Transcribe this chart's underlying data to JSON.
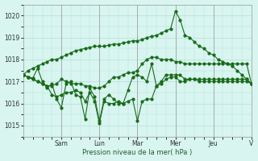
{
  "background_color": "#d8f5f0",
  "grid_color": "#b8ddd8",
  "line_color": "#1a6b1a",
  "xlabel": "Pression niveau de la mer( hPa )",
  "ylim": [
    1014.5,
    1020.5
  ],
  "yticks": [
    1015,
    1016,
    1017,
    1018,
    1019,
    1020
  ],
  "x_day_labels": [
    "Sam",
    "Lun",
    "Mar",
    "Mer",
    "Jeu",
    "V"
  ],
  "x_day_positions": [
    8,
    16,
    24,
    32,
    40,
    48
  ],
  "n_points": 49,
  "series": [
    [
      1017.3,
      1017.2,
      1017.1,
      1017.0,
      1016.9,
      1016.8,
      1016.4,
      1016.3,
      1016.4,
      1016.5,
      1016.5,
      1016.6,
      1016.5,
      1016.1,
      1016.5,
      1016.1,
      1015.1,
      1016.1,
      1016.0,
      1016.0,
      1016.1,
      1016.0,
      1016.1,
      1016.2,
      1015.2,
      1016.1,
      1016.2,
      1016.2,
      1016.8,
      1016.9,
      1017.1,
      1017.2,
      1017.2,
      1017.0,
      1017.0,
      1017.1,
      1017.1,
      1017.0,
      1017.0,
      1017.0,
      1017.0,
      1017.0,
      1017.0,
      1017.0,
      1017.0,
      1017.0,
      1017.0,
      1017.0,
      1016.9
    ],
    [
      1017.3,
      1017.2,
      1017.1,
      1017.0,
      1016.9,
      1016.8,
      1016.8,
      1016.9,
      1017.1,
      1017.0,
      1016.9,
      1016.9,
      1016.9,
      1016.8,
      1016.8,
      1016.7,
      1016.7,
      1016.8,
      1017.0,
      1017.2,
      1017.2,
      1017.3,
      1017.4,
      1017.4,
      1017.5,
      1017.8,
      1018.0,
      1018.1,
      1018.1,
      1018.0,
      1018.0,
      1018.0,
      1017.9,
      1017.9,
      1017.8,
      1017.8,
      1017.8,
      1017.8,
      1017.8,
      1017.8,
      1017.8,
      1017.8,
      1017.8,
      1017.8,
      1017.8,
      1017.8,
      1017.8,
      1017.8,
      1016.9
    ],
    [
      1017.3,
      1017.5,
      1017.6,
      1017.7,
      1017.8,
      1017.9,
      1018.0,
      1018.0,
      1018.1,
      1018.2,
      1018.3,
      1018.4,
      1018.45,
      1018.5,
      1018.55,
      1018.6,
      1018.6,
      1018.6,
      1018.65,
      1018.7,
      1018.7,
      1018.75,
      1018.8,
      1018.85,
      1018.85,
      1018.9,
      1019.0,
      1019.05,
      1019.1,
      1019.2,
      1019.3,
      1019.4,
      1020.2,
      1019.8,
      1019.1,
      1019.0,
      1018.8,
      1018.6,
      1018.5,
      1018.3,
      1018.2,
      1018.0,
      1017.9,
      1017.8,
      1017.7,
      1017.5,
      1017.3,
      1017.1,
      1016.9
    ],
    [
      1017.3,
      1017.2,
      1017.15,
      1017.6,
      1017.0,
      1016.7,
      1016.9,
      1016.2,
      1015.8,
      1016.9,
      1017.0,
      1016.4,
      1016.3,
      1015.3,
      1016.7,
      1016.3,
      1015.2,
      1016.2,
      1016.4,
      1016.2,
      1016.0,
      1016.0,
      1016.6,
      1017.2,
      1017.3,
      1017.2,
      1017.0,
      1017.8,
      1016.8,
      1017.0,
      1017.3,
      1017.3,
      1017.3,
      1017.3,
      1017.1,
      1017.1,
      1017.1,
      1017.1,
      1017.1,
      1017.1,
      1017.1,
      1017.1,
      1017.1,
      1017.1,
      1017.1,
      1017.1,
      1017.1,
      1017.1,
      1016.9
    ]
  ]
}
